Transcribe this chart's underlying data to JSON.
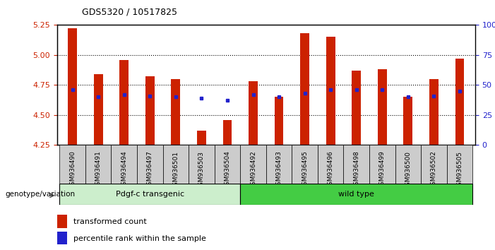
{
  "title": "GDS5320 / 10517825",
  "samples": [
    "GSM936490",
    "GSM936491",
    "GSM936494",
    "GSM936497",
    "GSM936501",
    "GSM936503",
    "GSM936504",
    "GSM936492",
    "GSM936493",
    "GSM936495",
    "GSM936496",
    "GSM936498",
    "GSM936499",
    "GSM936500",
    "GSM936502",
    "GSM936505"
  ],
  "red_values": [
    5.22,
    4.84,
    4.96,
    4.82,
    4.8,
    4.37,
    4.46,
    4.78,
    4.65,
    5.18,
    5.15,
    4.87,
    4.88,
    4.65,
    4.8,
    4.97
  ],
  "blue_values": [
    4.71,
    4.65,
    4.67,
    4.66,
    4.65,
    4.64,
    4.62,
    4.67,
    4.65,
    4.68,
    4.71,
    4.71,
    4.71,
    4.65,
    4.66,
    4.7
  ],
  "transgenic_count": 7,
  "ylim_left": [
    4.25,
    5.25
  ],
  "ylim_right": [
    0,
    100
  ],
  "yticks_left": [
    4.25,
    4.5,
    4.75,
    5.0,
    5.25
  ],
  "yticks_right": [
    0,
    25,
    50,
    75,
    100
  ],
  "bar_color": "#cc2200",
  "dot_color": "#2222cc",
  "bar_bottom": 4.25,
  "transgenic_label": "Pdgf-c transgenic",
  "wildtype_label": "wild type",
  "group_label": "genotype/variation",
  "legend_red": "transformed count",
  "legend_blue": "percentile rank within the sample",
  "transgenic_color": "#cceecc",
  "wildtype_color": "#44cc44",
  "tick_label_color_left": "#cc2200",
  "tick_label_color_right": "#2222cc",
  "grid_color": "#000000",
  "xtick_bg_color": "#cccccc"
}
